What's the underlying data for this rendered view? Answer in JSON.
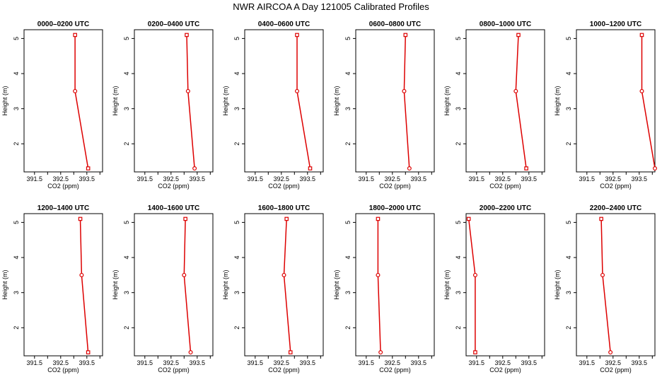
{
  "page": {
    "title": "NWR AIRCOA A  Day 121005  Calibrated Profiles"
  },
  "chart_data": {
    "type": "line",
    "xlabel": "CO2 (ppm)",
    "ylabel": "Height (m)",
    "xlim": [
      391.1,
      394.1
    ],
    "ylim": [
      1.2,
      5.25
    ],
    "xticks": [
      391.5,
      392,
      392.5,
      393,
      393.5,
      394
    ],
    "xtick_labels": [
      "391.5",
      "",
      "392.5",
      "",
      "393.5",
      ""
    ],
    "yticks": [
      2,
      3,
      4,
      5
    ],
    "heights": [
      1.3,
      3.5,
      5.1
    ],
    "line_color": "#dd0000",
    "panels": [
      {
        "title": "0000–0200 UTC",
        "values": [
          393.55,
          393.05,
          393.05
        ]
      },
      {
        "title": "0200–0400 UTC",
        "values": [
          393.4,
          393.15,
          393.1
        ]
      },
      {
        "title": "0400–0600 UTC",
        "values": [
          393.6,
          393.1,
          393.1
        ]
      },
      {
        "title": "0600–0800 UTC",
        "values": [
          393.15,
          392.95,
          393.0
        ]
      },
      {
        "title": "0800–1000 UTC",
        "values": [
          393.4,
          393.0,
          393.1
        ]
      },
      {
        "title": "1000–1200 UTC",
        "values": [
          394.1,
          393.6,
          393.6
        ]
      },
      {
        "title": "1200–1400 UTC",
        "values": [
          393.55,
          393.3,
          393.25
        ]
      },
      {
        "title": "1400–1600 UTC",
        "values": [
          393.25,
          393.0,
          393.05
        ]
      },
      {
        "title": "1600–1800 UTC",
        "values": [
          392.85,
          392.6,
          392.7
        ]
      },
      {
        "title": "1800–2000 UTC",
        "values": [
          392.05,
          391.95,
          391.95
        ]
      },
      {
        "title": "2000–2200 UTC",
        "values": [
          391.45,
          391.45,
          391.2
        ]
      },
      {
        "title": "2200–2400 UTC",
        "values": [
          392.4,
          392.1,
          392.05
        ]
      }
    ]
  }
}
